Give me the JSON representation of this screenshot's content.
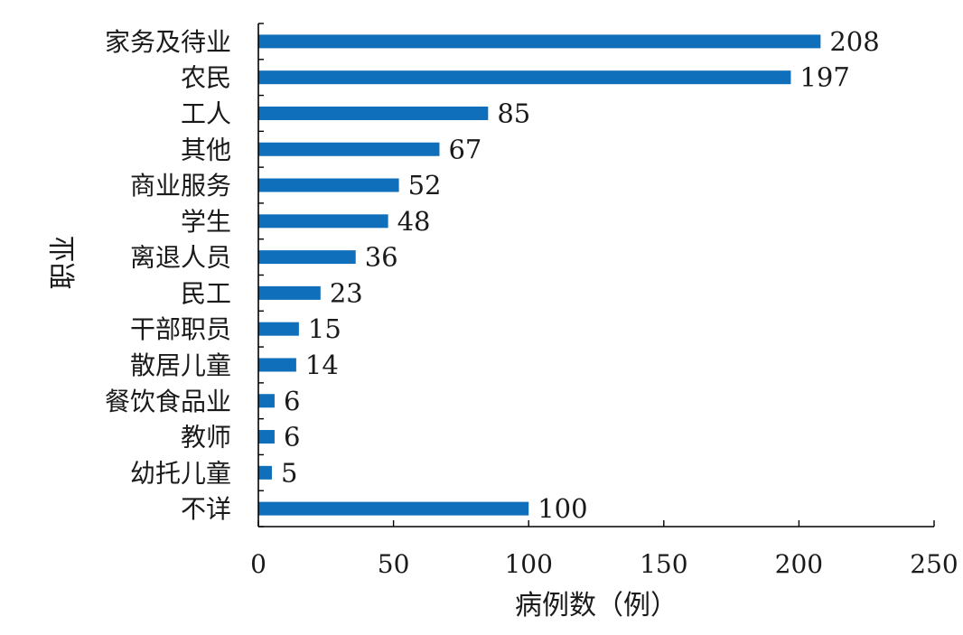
{
  "chart_data": {
    "type": "bar",
    "orientation": "horizontal",
    "categories": [
      "家务及待业",
      "农民",
      "工人",
      "其他",
      "商业服务",
      "学生",
      "离退人员",
      "民工",
      "干部职员",
      "散居儿童",
      "餐饮食品业",
      "教师",
      "幼托儿童",
      "不详"
    ],
    "values": [
      208,
      197,
      85,
      67,
      52,
      48,
      36,
      23,
      15,
      14,
      6,
      6,
      5,
      100
    ],
    "xlabel": "病例数（例）",
    "ylabel": "职业",
    "xlim": [
      0,
      250
    ],
    "xticks": [
      "0",
      "50",
      "100",
      "150",
      "200",
      "250"
    ],
    "bar_color": "#0f6fba",
    "grid": false,
    "legend": "none",
    "data_labels": true
  }
}
